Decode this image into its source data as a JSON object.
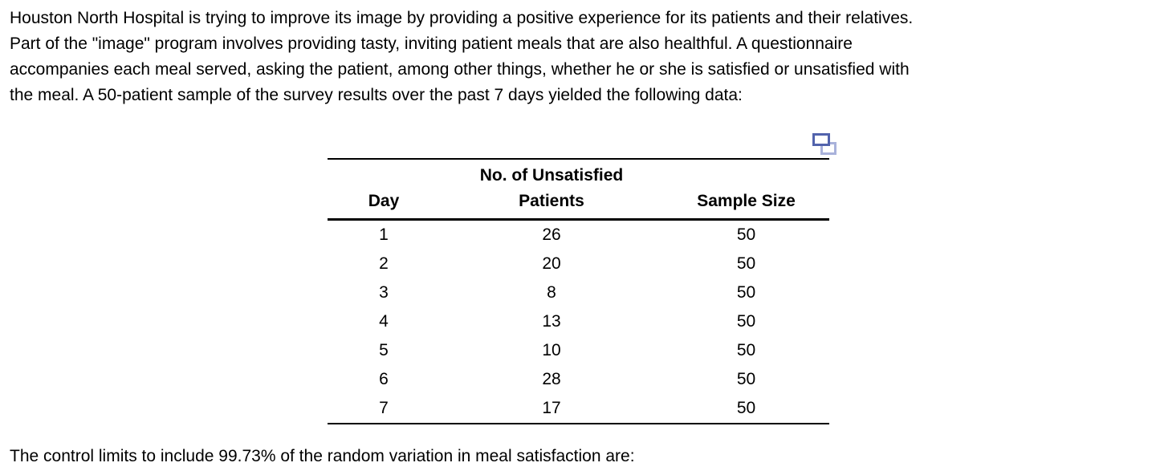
{
  "problem": {
    "lines": [
      "Houston North Hospital is trying to improve its image by providing a positive experience for its patients and their relatives.",
      "Part of the \"image\" program involves providing tasty, inviting patient meals that are also healthful. A questionnaire",
      "accompanies each meal served, asking the patient, among other things, whether he or she is satisfied or unsatisfied with",
      "the meal. A 50-patient sample of the survey results over the past 7 days yielded the following data:"
    ]
  },
  "table": {
    "headers": {
      "day": "Day",
      "unsatisfied_line1": "No. of Unsatisfied",
      "unsatisfied_line2": "Patients",
      "sample_size": "Sample Size"
    },
    "rows": [
      {
        "day": "1",
        "unsatisfied": "26",
        "sample_size": "50"
      },
      {
        "day": "2",
        "unsatisfied": "20",
        "sample_size": "50"
      },
      {
        "day": "3",
        "unsatisfied": "8",
        "sample_size": "50"
      },
      {
        "day": "4",
        "unsatisfied": "13",
        "sample_size": "50"
      },
      {
        "day": "5",
        "unsatisfied": "10",
        "sample_size": "50"
      },
      {
        "day": "6",
        "unsatisfied": "28",
        "sample_size": "50"
      },
      {
        "day": "7",
        "unsatisfied": "17",
        "sample_size": "50"
      }
    ]
  },
  "icons": {
    "copy_icon": {
      "name": "copy-icon",
      "front_color": "#5263AC",
      "back_color": "#A9B2DB"
    }
  },
  "footer": {
    "text": "The control limits to include 99.73% of the random variation in meal satisfaction are:"
  },
  "colors": {
    "text": "#000000",
    "background": "#FFFFFF"
  }
}
